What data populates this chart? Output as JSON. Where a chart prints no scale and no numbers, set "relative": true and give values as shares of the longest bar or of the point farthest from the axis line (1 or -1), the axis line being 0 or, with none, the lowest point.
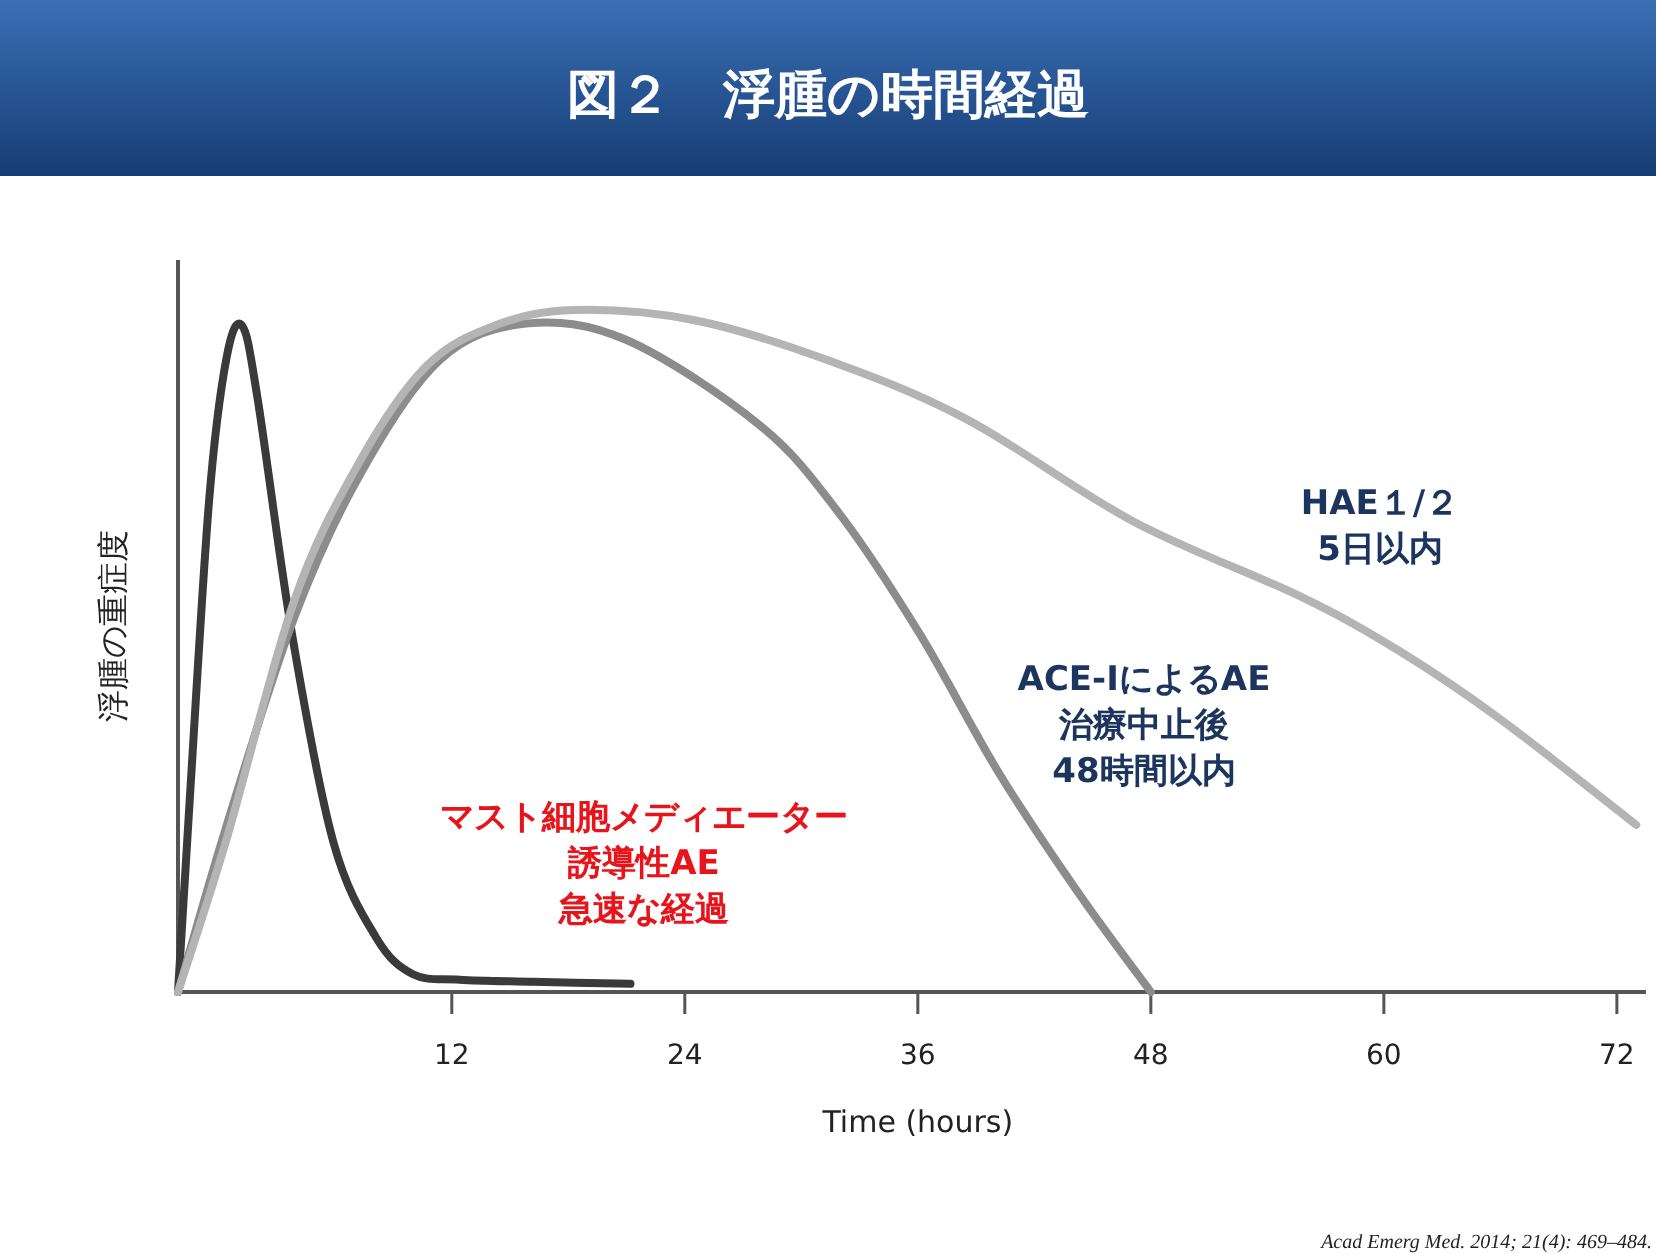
{
  "chart_data": {
    "type": "line",
    "title": "図２　浮腫の時間経過",
    "xlabel": "Time (hours)",
    "ylabel": "浮腫の重症度",
    "relative": true,
    "xlim": [
      -2.1,
      73.5
    ],
    "xticks": [
      12,
      24,
      36,
      48,
      60,
      72
    ],
    "grid": false,
    "marker": "none",
    "line_style": "solid",
    "series": [
      {
        "color": "#3a3a3a",
        "x": [
          -2.1,
          -1.5,
          -0.5,
          0.4,
          1.2,
          2.0,
          3.8,
          5.9,
          8.1,
          10.0,
          12.4,
          16.2,
          21.2
        ],
        "values": [
          0,
          0.28,
          0.72,
          0.93,
          0.977,
          0.87,
          0.52,
          0.22,
          0.08,
          0.026,
          0.018,
          0.015,
          0.012
        ]
      },
      {
        "color": "#8c8c8c",
        "x": [
          -2.1,
          0.36,
          3.9,
          7.3,
          11.4,
          15.8,
          21.0,
          27.9,
          32.0,
          36.1,
          40.2,
          44.3,
          48.0
        ],
        "values": [
          0,
          0.24,
          0.55,
          0.76,
          0.927,
          0.98,
          0.956,
          0.83,
          0.7,
          0.525,
          0.32,
          0.144,
          0
        ]
      },
      {
        "color": "#b4b4b4",
        "x": [
          -2.1,
          0.36,
          3.9,
          7.3,
          10.7,
          14.2,
          18.3,
          24.5,
          31.3,
          38.5,
          47.1,
          55.7,
          60.8,
          66.0,
          73.0
        ],
        "values": [
          0,
          0.22,
          0.575,
          0.78,
          0.918,
          0.977,
          1.0,
          0.985,
          0.927,
          0.84,
          0.69,
          0.58,
          0.5,
          0.4,
          0.245
        ]
      }
    ],
    "annotations": [
      "マスト細胞メディエーター",
      "誘導性AE",
      "急速な経過",
      "ACE-IによるAE",
      "治療中止後",
      "48時間以内",
      "HAE１/２",
      "5日以内",
      "Acad Emerg Med. 2014; 21(4): 469–484."
    ]
  }
}
